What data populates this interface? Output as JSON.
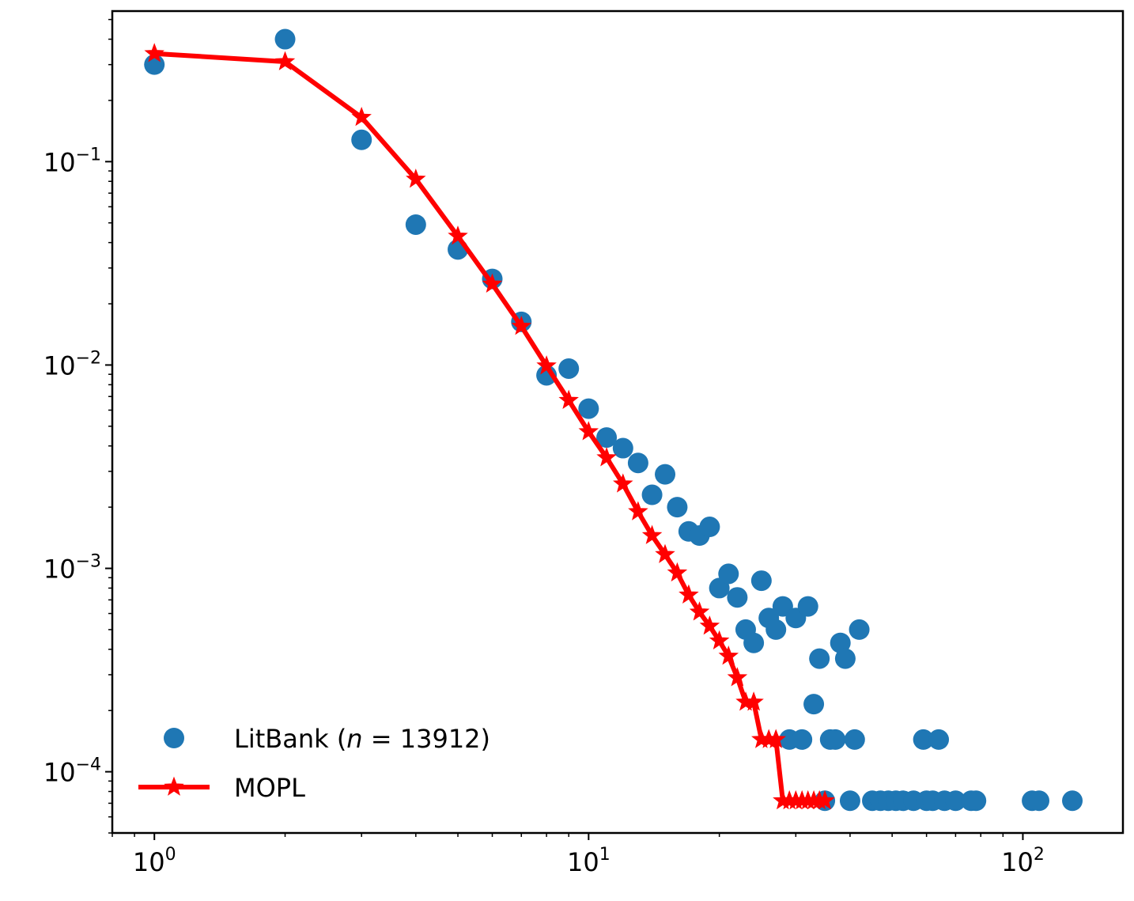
{
  "chart_data": {
    "type": "scatter",
    "xscale": "log",
    "yscale": "log",
    "xlim": [
      0.8,
      170
    ],
    "ylim": [
      5e-05,
      0.55
    ],
    "grid": false,
    "legend_position": "lower-left",
    "x_ticks": [
      {
        "base": "10",
        "exp": "0"
      },
      {
        "base": "10",
        "exp": "1"
      },
      {
        "base": "10",
        "exp": "2"
      }
    ],
    "y_ticks": [
      {
        "base": "10",
        "exp": "−1"
      },
      {
        "base": "10",
        "exp": "−2"
      },
      {
        "base": "10",
        "exp": "−3"
      },
      {
        "base": "10",
        "exp": "−4"
      }
    ],
    "series": [
      {
        "name": "LitBank (n = 13912)",
        "legend_parts": {
          "prefix": "LitBank (",
          "var": "n",
          "suffix": " = 13912)"
        },
        "kind": "scatter",
        "color": "#1f77b4",
        "points": [
          [
            1,
            0.3
          ],
          [
            2,
            0.4
          ],
          [
            3,
            0.128
          ],
          [
            4,
            0.049
          ],
          [
            5,
            0.037
          ],
          [
            6,
            0.0265
          ],
          [
            7,
            0.0163
          ],
          [
            8,
            0.0089
          ],
          [
            9,
            0.0096
          ],
          [
            10,
            0.0061
          ],
          [
            11,
            0.0044
          ],
          [
            12,
            0.0039
          ],
          [
            13,
            0.0033
          ],
          [
            14,
            0.0023
          ],
          [
            15,
            0.0029
          ],
          [
            16,
            0.002
          ],
          [
            17,
            0.00152
          ],
          [
            18,
            0.00145
          ],
          [
            19,
            0.0016
          ],
          [
            20,
            0.0008
          ],
          [
            21,
            0.00094
          ],
          [
            22,
            0.00072
          ],
          [
            23,
            0.0005
          ],
          [
            24,
            0.00043
          ],
          [
            25,
            0.00087
          ],
          [
            26,
            0.00057
          ],
          [
            27,
            0.0005
          ],
          [
            28,
            0.00065
          ],
          [
            29,
            0.000144
          ],
          [
            30,
            0.00057
          ],
          [
            31,
            0.000144
          ],
          [
            32,
            0.00065
          ],
          [
            33,
            0.000215
          ],
          [
            34,
            0.00036
          ],
          [
            35,
            7.2e-05
          ],
          [
            36,
            0.000144
          ],
          [
            37,
            0.000144
          ],
          [
            38,
            0.00043
          ],
          [
            39,
            0.00036
          ],
          [
            40,
            7.2e-05
          ],
          [
            41,
            0.000144
          ],
          [
            42,
            0.0005
          ],
          [
            45,
            7.2e-05
          ],
          [
            47,
            7.2e-05
          ],
          [
            49,
            7.2e-05
          ],
          [
            51,
            7.2e-05
          ],
          [
            53,
            7.2e-05
          ],
          [
            56,
            7.2e-05
          ],
          [
            59,
            0.000144
          ],
          [
            60,
            7.2e-05
          ],
          [
            62,
            7.2e-05
          ],
          [
            64,
            0.000144
          ],
          [
            66,
            7.2e-05
          ],
          [
            70,
            7.2e-05
          ],
          [
            76,
            7.2e-05
          ],
          [
            78,
            7.2e-05
          ],
          [
            105,
            7.2e-05
          ],
          [
            109,
            7.2e-05
          ],
          [
            130,
            7.2e-05
          ]
        ]
      },
      {
        "name": "MOPL",
        "kind": "line-star",
        "color": "#ff0000",
        "points": [
          [
            1,
            0.34
          ],
          [
            2,
            0.31
          ],
          [
            3,
            0.165
          ],
          [
            4,
            0.082
          ],
          [
            5,
            0.043
          ],
          [
            6,
            0.025
          ],
          [
            7,
            0.0155
          ],
          [
            8,
            0.0099
          ],
          [
            9,
            0.0067
          ],
          [
            10,
            0.0047
          ],
          [
            11,
            0.0035
          ],
          [
            12,
            0.0026
          ],
          [
            13,
            0.0019
          ],
          [
            14,
            0.00145
          ],
          [
            15,
            0.00117
          ],
          [
            16,
            0.00095
          ],
          [
            17,
            0.00074
          ],
          [
            18,
            0.00061
          ],
          [
            19,
            0.00052
          ],
          [
            20,
            0.00044
          ],
          [
            21,
            0.00037
          ],
          [
            22,
            0.00029
          ],
          [
            23,
            0.00022
          ],
          [
            24,
            0.00022
          ],
          [
            25,
            0.000144
          ],
          [
            26,
            0.000144
          ],
          [
            27,
            0.000144
          ],
          [
            28,
            7.2e-05
          ],
          [
            29,
            7.2e-05
          ],
          [
            30,
            7.2e-05
          ],
          [
            31,
            7.2e-05
          ],
          [
            32,
            7.2e-05
          ],
          [
            33,
            7.2e-05
          ],
          [
            34,
            7.2e-05
          ],
          [
            35,
            7.2e-05
          ]
        ]
      }
    ]
  }
}
